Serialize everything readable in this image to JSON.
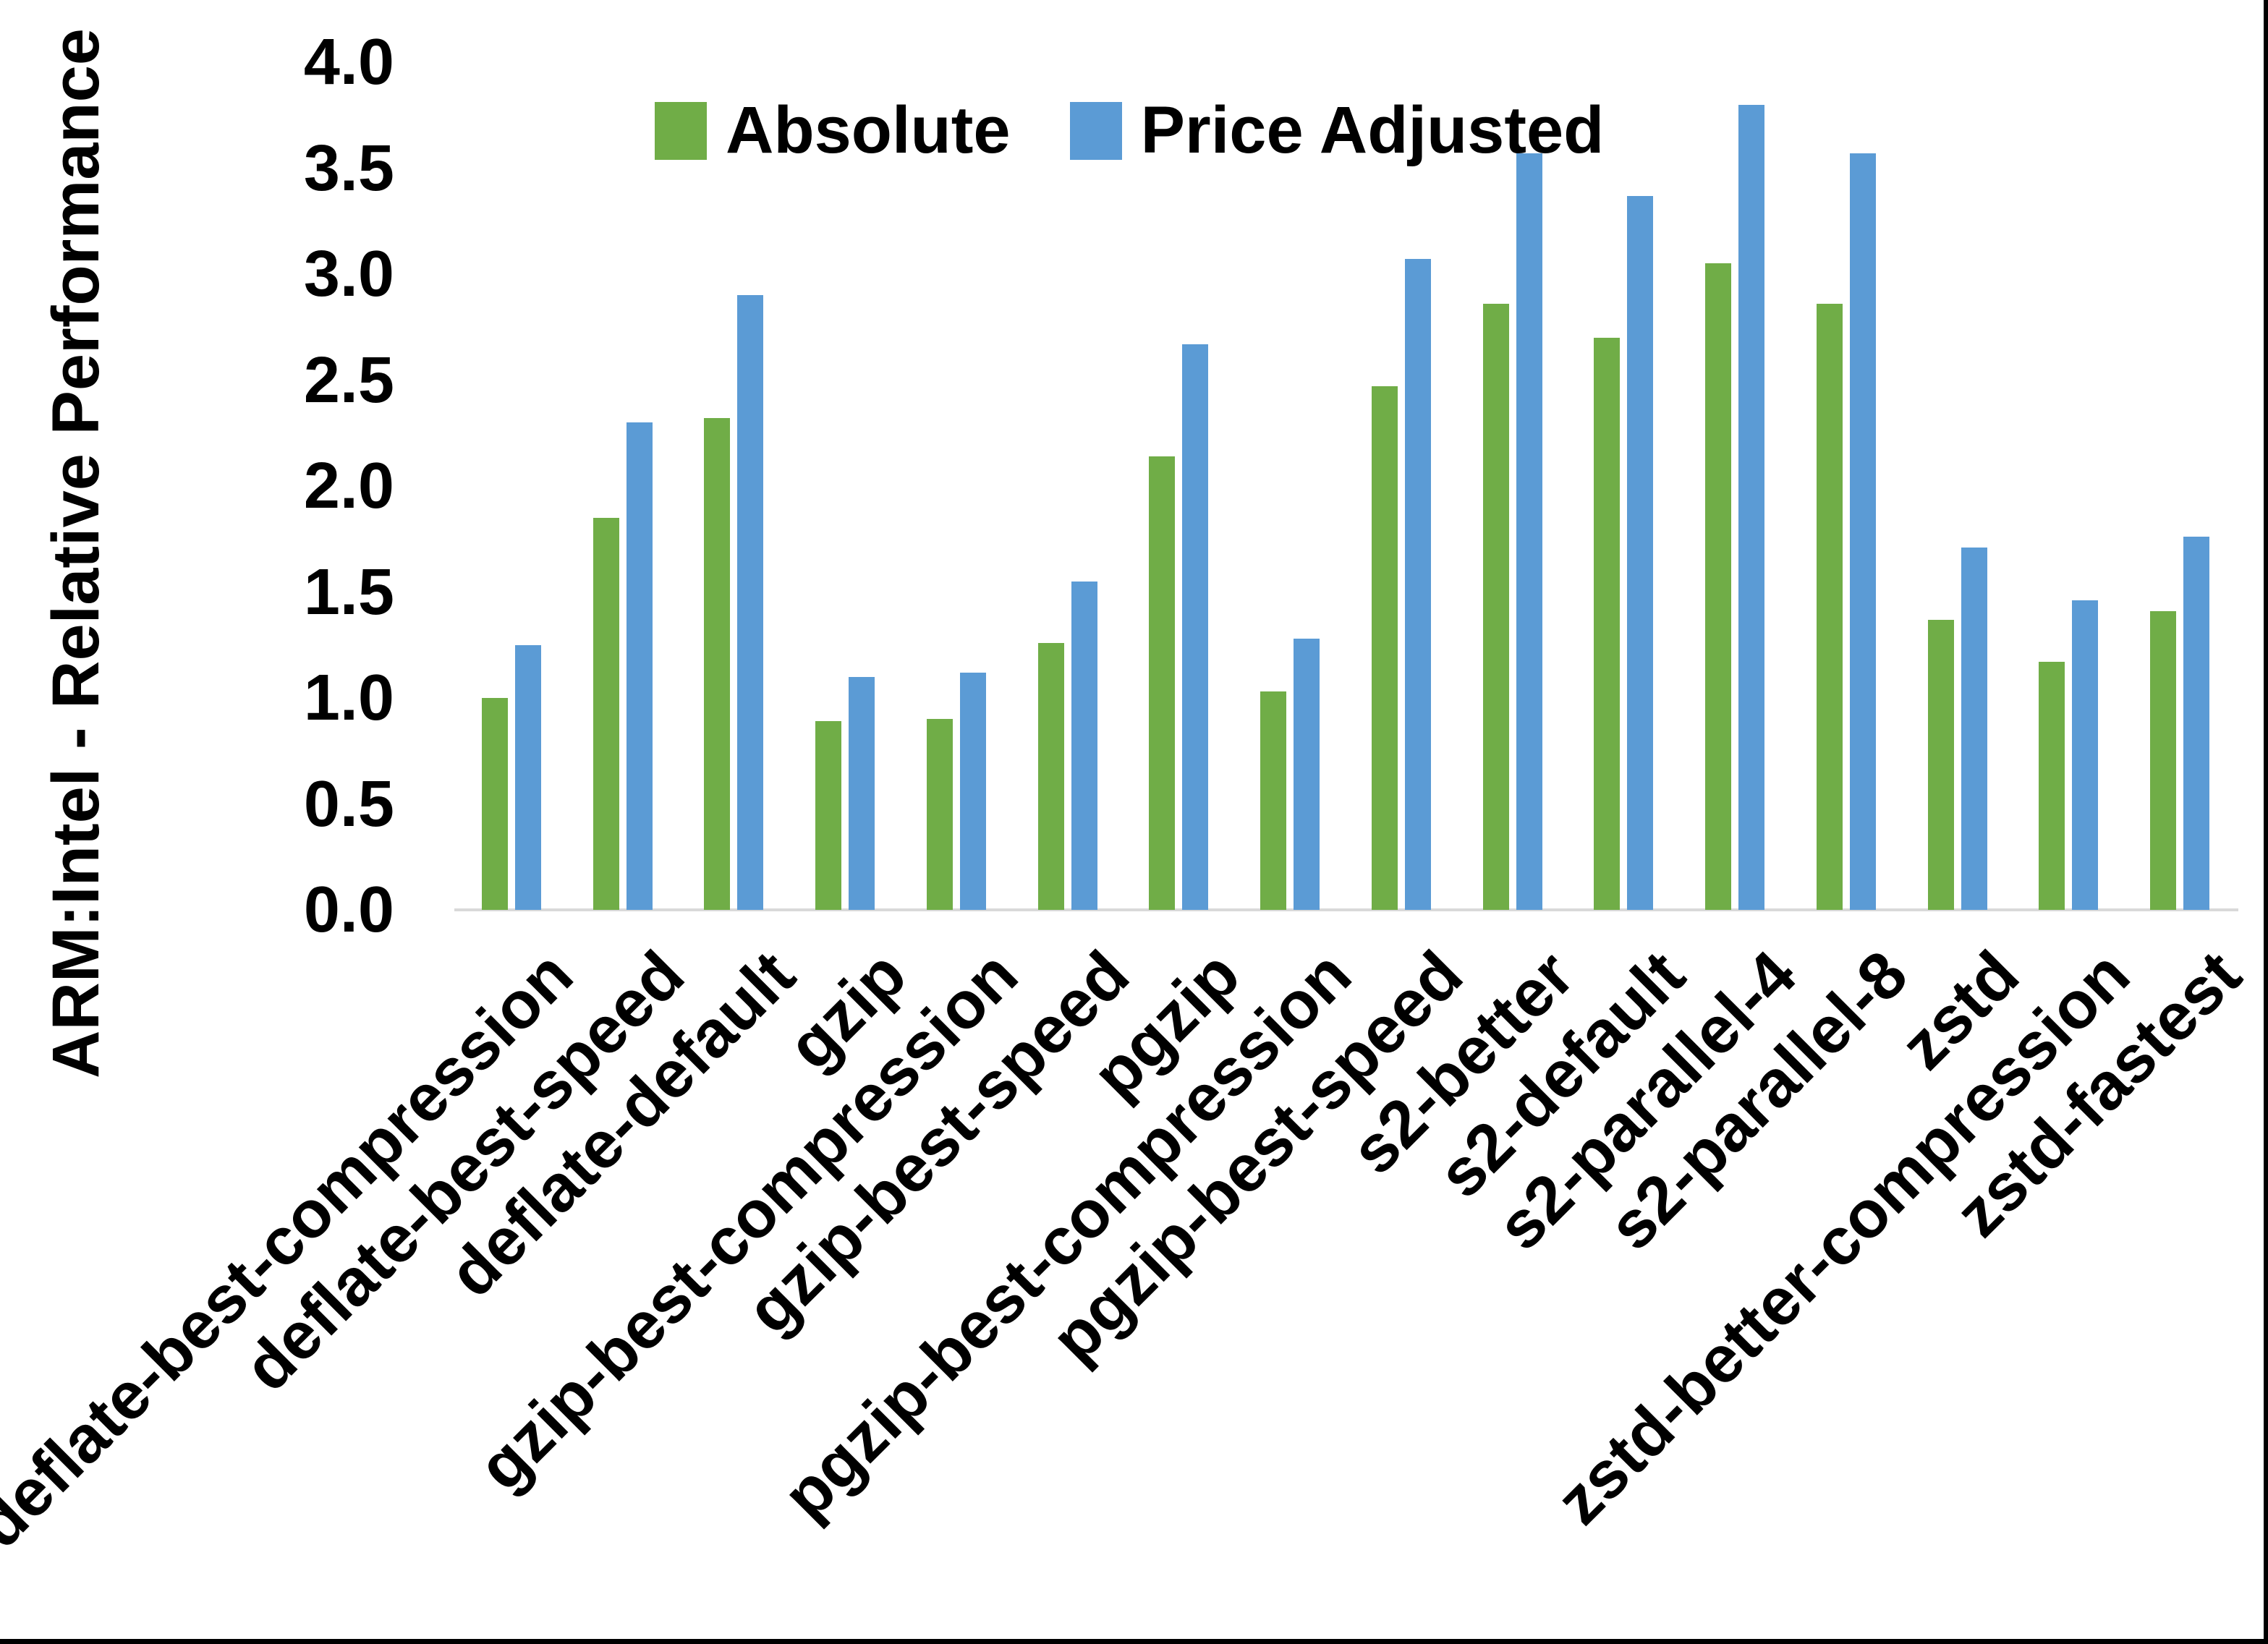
{
  "chart": {
    "y_axis_title": "ARM:Intel - Relative Performance",
    "y_ticks": [
      "0.0",
      "0.5",
      "1.0",
      "1.5",
      "2.0",
      "2.5",
      "3.0",
      "3.5",
      "4.0"
    ],
    "axis_line_color": "#d9d9d9",
    "frame_border_color": "#000000",
    "background_color": "#ffffff"
  },
  "chart_data": {
    "type": "bar",
    "title": "",
    "xlabel": "",
    "ylabel": "ARM:Intel - Relative Performance",
    "ylim": [
      0,
      4
    ],
    "ytick_step": 0.5,
    "grid": false,
    "legend_position": "top-center",
    "categories": [
      "deflate-best-compression",
      "deflate-best-speed",
      "deflate-default",
      "gzip",
      "gzip-best-compression",
      "gzip-best-speed",
      "pgzip",
      "pgzip-best-compression",
      "pgzip-best-speed",
      "s2-better",
      "s2-default",
      "s2-parallel-4",
      "s2-parallel-8",
      "zstd",
      "zstd-better-compression",
      "zstd-fastest"
    ],
    "series": [
      {
        "name": "Absolute",
        "color": "#70AD47",
        "values": [
          1.0,
          1.85,
          2.32,
          0.89,
          0.9,
          1.26,
          2.14,
          1.03,
          2.47,
          2.86,
          2.7,
          3.05,
          2.86,
          1.37,
          1.17,
          1.41
        ]
      },
      {
        "name": "Price Adjusted",
        "color": "#5B9BD5",
        "values": [
          1.25,
          2.3,
          2.9,
          1.1,
          1.12,
          1.55,
          2.67,
          1.28,
          3.07,
          3.57,
          3.37,
          3.8,
          3.57,
          1.71,
          1.46,
          1.76
        ]
      }
    ]
  }
}
